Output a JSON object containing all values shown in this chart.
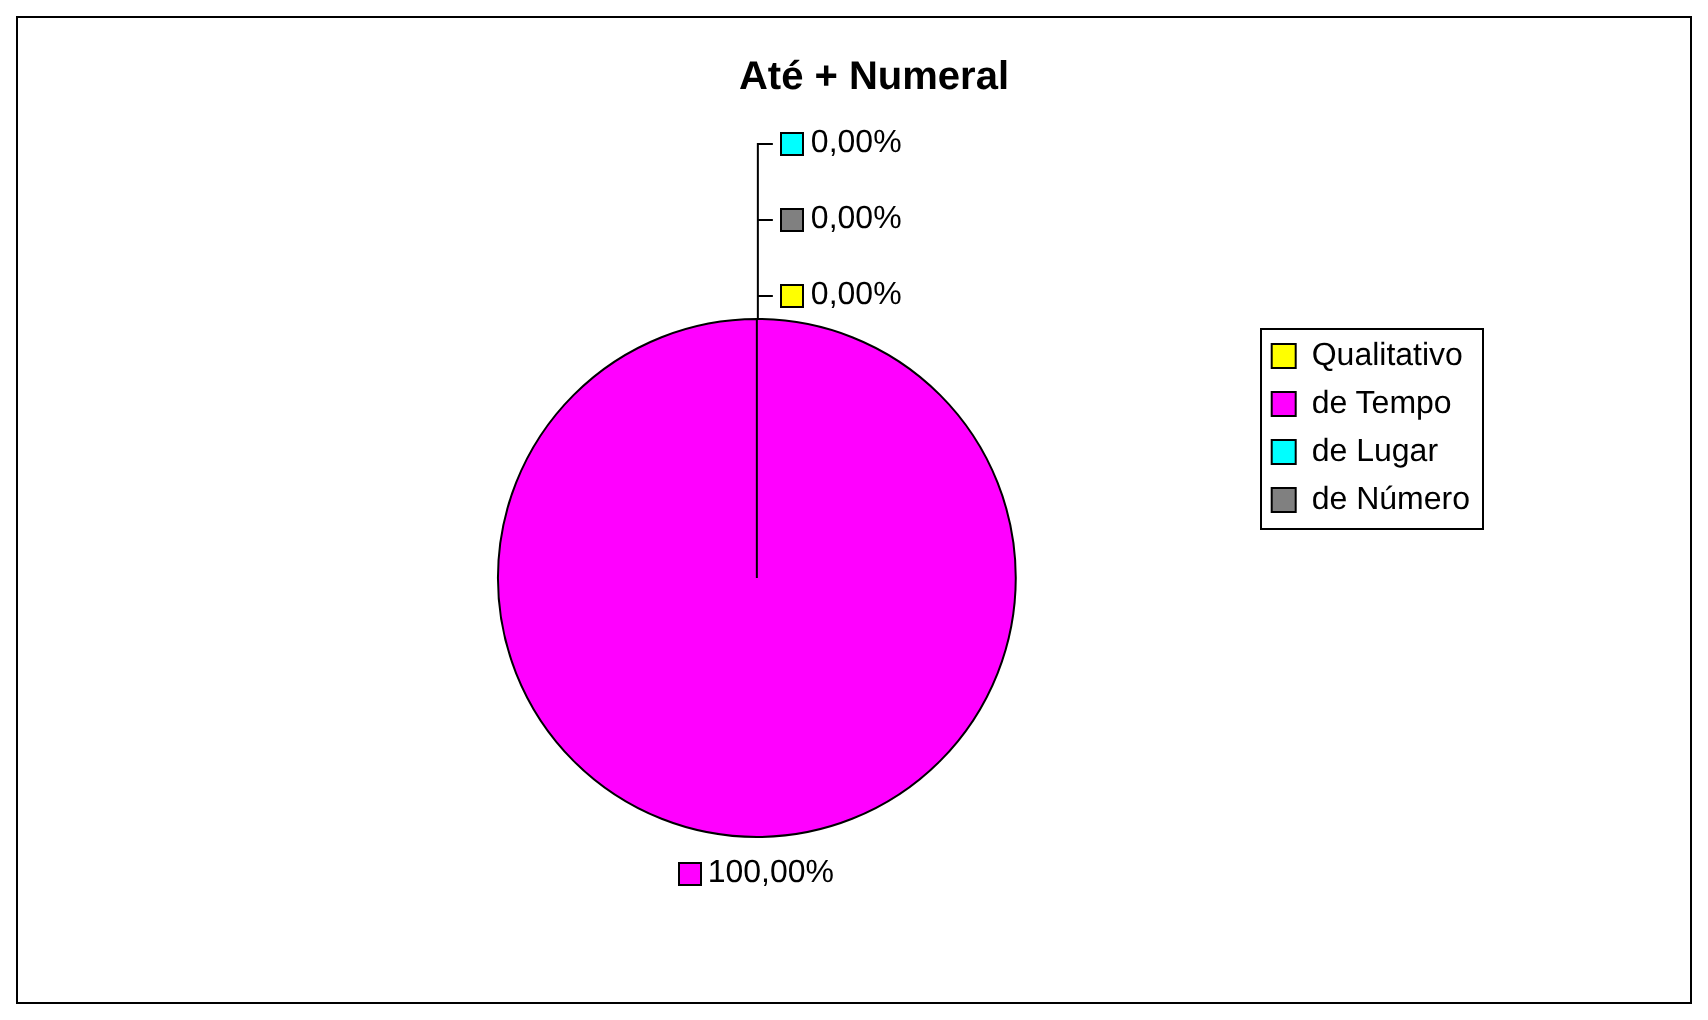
{
  "chart_data": {
    "type": "pie",
    "title": "Até + Numeral",
    "categories": [
      "Qualitativo",
      "de Tempo",
      "de Lugar",
      "de Número"
    ],
    "values": [
      0,
      100,
      0,
      0
    ],
    "colors": [
      "#ffff00",
      "#ff00ff",
      "#00ffff",
      "#808080"
    ],
    "value_labels": [
      "0,00%",
      "100,00%",
      "0,00%",
      "0,00%"
    ],
    "legend": "right"
  }
}
